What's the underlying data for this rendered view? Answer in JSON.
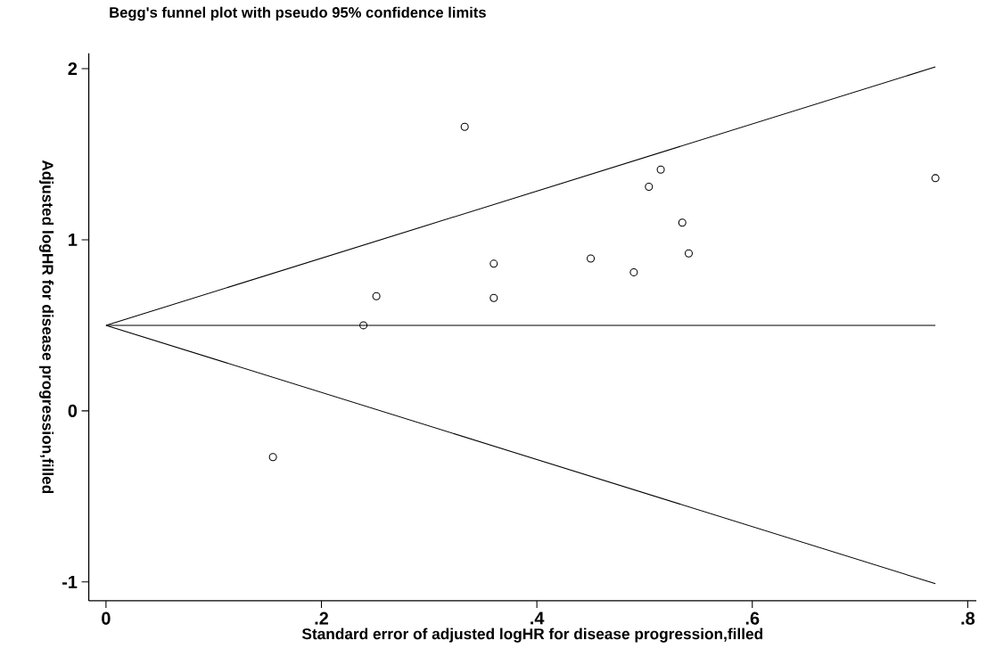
{
  "chart_data": {
    "type": "scatter",
    "title": "Begg's funnel plot with pseudo 95% confidence limits",
    "xlabel": "Standard error of adjusted logHR for disease progression,filled",
    "ylabel": "Adjusted logHR for disease progression,filled",
    "xlim": [
      -0.016,
      0.808
    ],
    "ylim": [
      -1.11,
      2.09
    ],
    "xticks": [
      0,
      {
        "value": 0.2,
        "label": ".2"
      },
      {
        "value": 0.4,
        "label": ".4"
      },
      {
        "value": 0.6,
        "label": ".6"
      },
      {
        "value": 0.8,
        "label": ".8"
      }
    ],
    "yticks": [
      -1,
      0,
      1,
      2
    ],
    "grid": false,
    "series": [
      {
        "type": "scatter",
        "marker": "circle",
        "color": "#000000",
        "x": [
          0.155,
          0.239,
          0.251,
          0.333,
          0.36,
          0.36,
          0.45,
          0.49,
          0.504,
          0.515,
          0.535,
          0.541,
          0.77
        ],
        "values": [
          -0.27,
          0.5,
          0.67,
          1.66,
          0.86,
          0.66,
          0.89,
          0.81,
          1.31,
          1.41,
          1.1,
          0.92,
          1.36
        ]
      },
      {
        "type": "line",
        "line_style": "solid",
        "color": "#000000",
        "x": [
          0,
          0.77
        ],
        "values": [
          0.5,
          2.01
        ]
      },
      {
        "type": "line",
        "line_style": "solid",
        "color": "#000000",
        "x": [
          0,
          0.77
        ],
        "values": [
          0.5,
          0.5
        ]
      },
      {
        "type": "line",
        "line_style": "solid",
        "color": "#000000",
        "x": [
          0,
          0.77
        ],
        "values": [
          0.5,
          -1.01
        ]
      }
    ]
  }
}
